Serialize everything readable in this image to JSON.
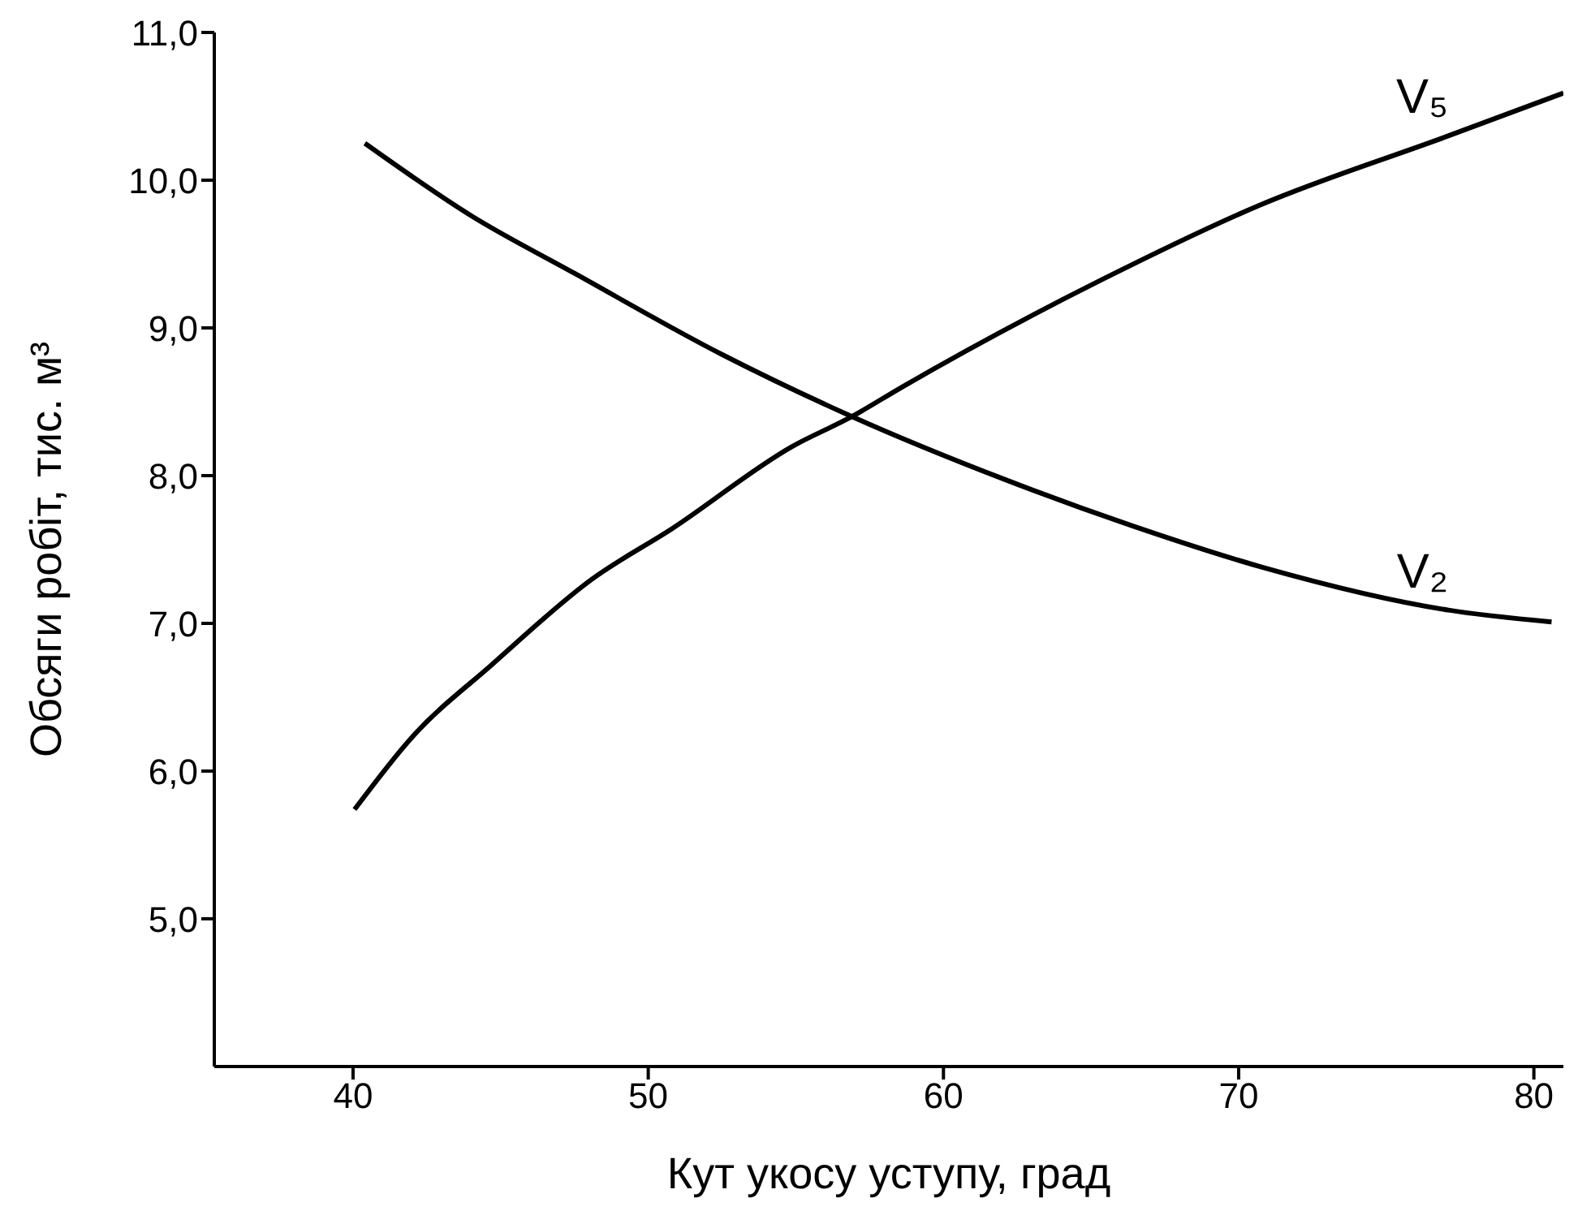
{
  "chart_data": {
    "type": "line",
    "xlabel": "Кут укосу уступу, град",
    "ylabel": "Обсяги робіт, тис. м³",
    "xlim": [
      35.3,
      81
    ],
    "xticks": [
      40,
      50,
      60,
      70,
      80
    ],
    "ylim": [
      4,
      11
    ],
    "yticks": [
      {
        "value": 5,
        "label": "5,0"
      },
      {
        "value": 6,
        "label": "6,0"
      },
      {
        "value": 7,
        "label": "7,0"
      },
      {
        "value": 8,
        "label": "8,0"
      },
      {
        "value": 9,
        "label": "9,0"
      },
      {
        "value": 10,
        "label": "10,0"
      },
      {
        "value": 11,
        "label": "11,0"
      }
    ],
    "grid": false,
    "legend": false,
    "marker": "none",
    "line_style": "solid",
    "series": [
      {
        "name": "V₂",
        "color": "#000000",
        "x": [
          40.4,
          44.0,
          47.5,
          52.5,
          56.9,
          62.0,
          66.4,
          70.8,
          77.1,
          80.6
        ],
        "values": [
          10.25,
          9.76,
          9.37,
          8.82,
          8.4,
          7.98,
          7.66,
          7.38,
          7.09,
          7.01
        ]
      },
      {
        "name": "V₅",
        "color": "#000000",
        "x": [
          40.05,
          42.0,
          44.7,
          48.1,
          50.8,
          54.9,
          56.9,
          58.6,
          65.4,
          70.7,
          77.1,
          81.0
        ],
        "values": [
          5.74,
          6.23,
          6.72,
          7.3,
          7.64,
          8.2,
          8.4,
          8.6,
          9.33,
          9.83,
          10.3,
          10.59
        ]
      }
    ]
  }
}
